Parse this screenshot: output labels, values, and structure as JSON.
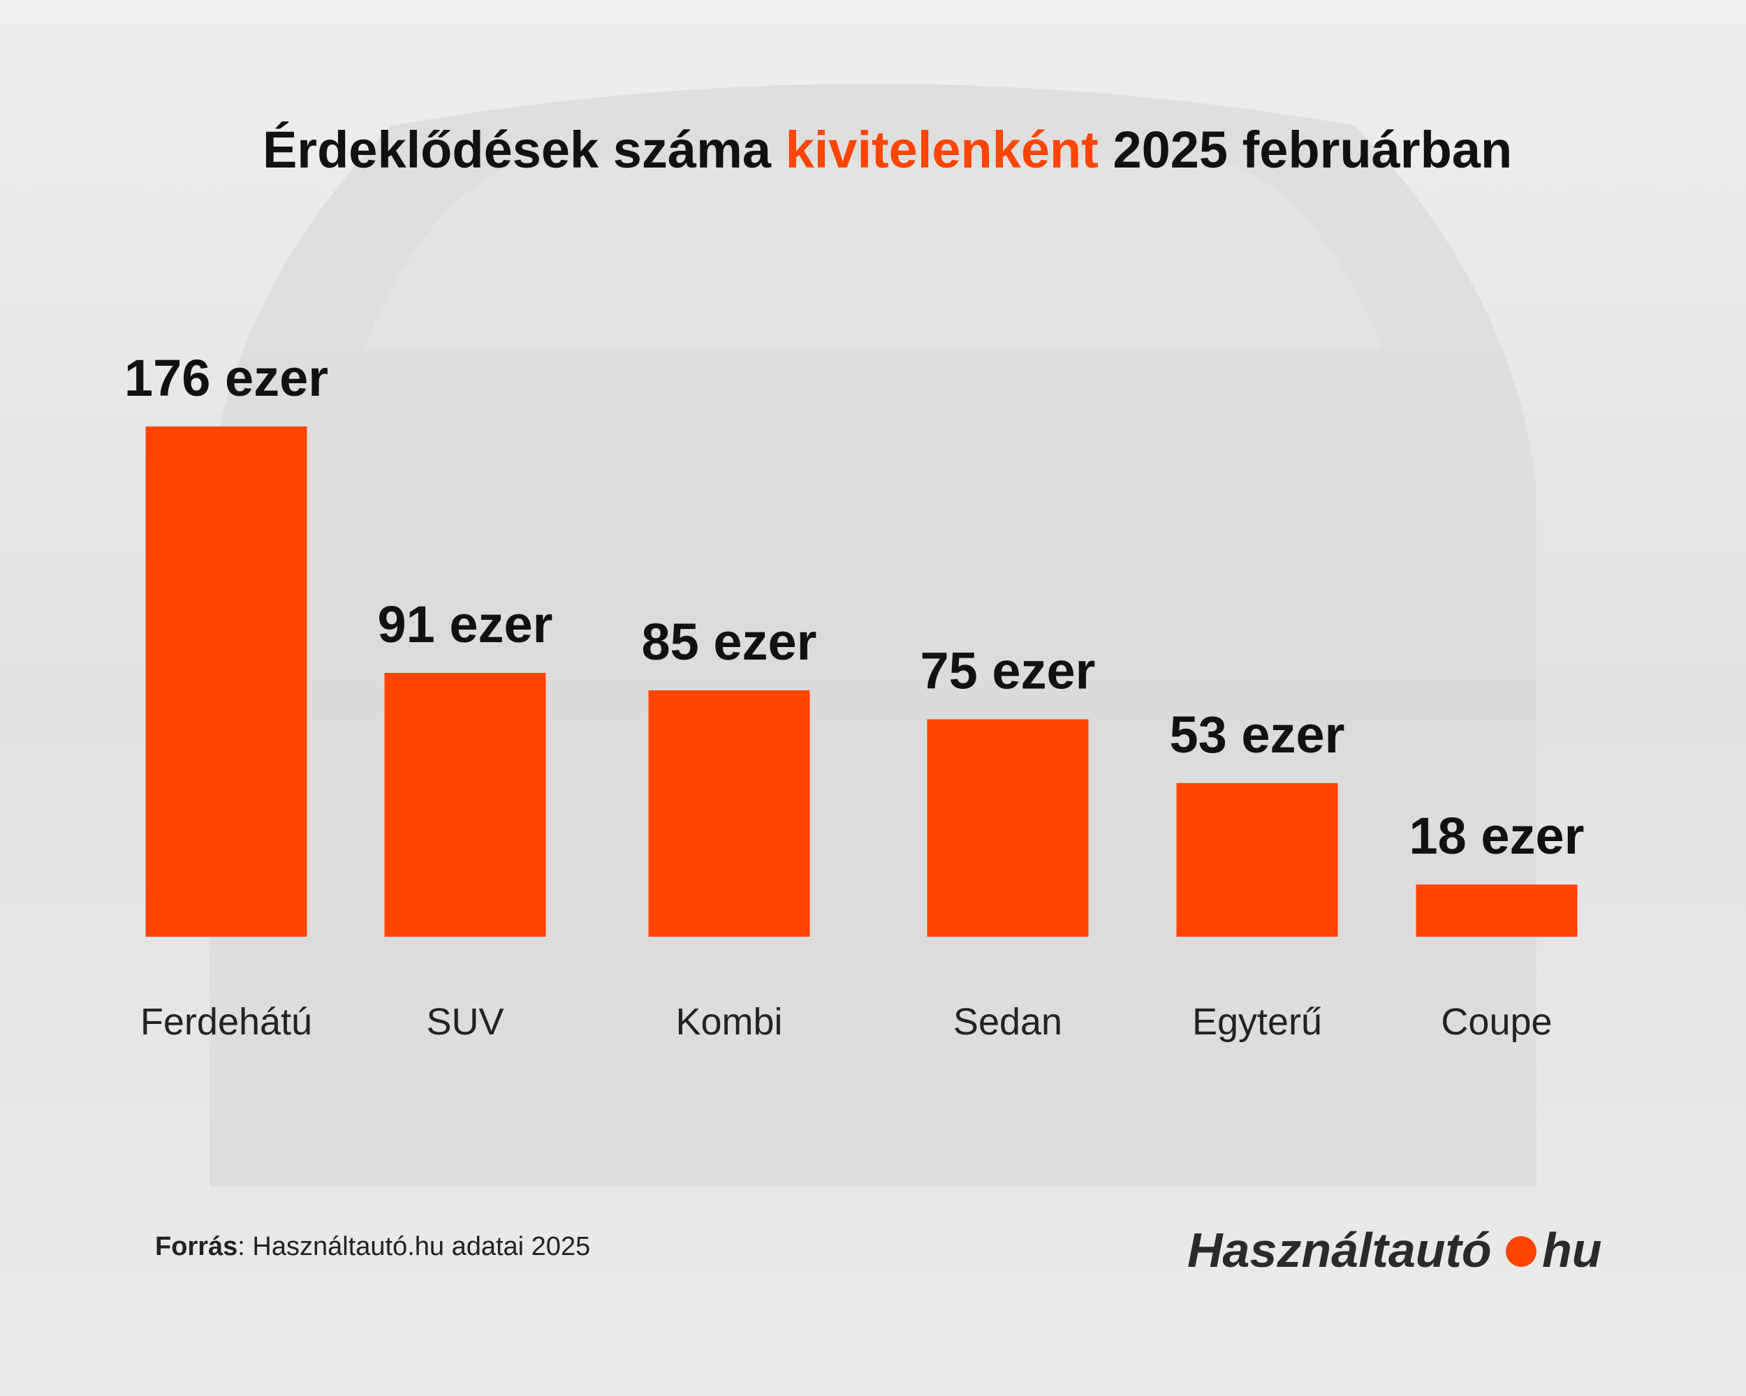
{
  "chart_data": {
    "type": "bar",
    "title": [
      "Érdeklődések száma ",
      "kivitelenként",
      " 2025 februárban"
    ],
    "title_highlight_color": "#ff4500",
    "categories": [
      "Ferdehátú",
      "SUV",
      "Kombi",
      "Sedan",
      "Egyterű",
      "Coupe"
    ],
    "values": [
      176,
      91,
      85,
      75,
      53,
      18
    ],
    "value_labels": [
      "176 ezer",
      "91 ezer",
      "85 ezer",
      "75 ezer",
      "53 ezer",
      "18 ezer"
    ],
    "color": "#ff4500",
    "source_label": "Forrás",
    "source_text": ": Használtautó.hu adatai 2025",
    "brand": "Használtautó",
    "brand_tld": "hu"
  }
}
